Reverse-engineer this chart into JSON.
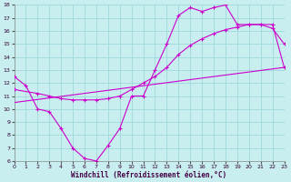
{
  "xlabel": "Windchill (Refroidissement éolien,°C)",
  "xlim": [
    0,
    23
  ],
  "ylim": [
    6,
    18
  ],
  "xticks": [
    0,
    1,
    2,
    3,
    4,
    5,
    6,
    7,
    8,
    9,
    10,
    11,
    12,
    13,
    14,
    15,
    16,
    17,
    18,
    19,
    20,
    21,
    22,
    23
  ],
  "yticks": [
    6,
    7,
    8,
    9,
    10,
    11,
    12,
    13,
    14,
    15,
    16,
    17,
    18
  ],
  "bg_color": "#c8eef0",
  "line_color": "#cc00cc",
  "grid_color": "#9fd8dc",
  "line1_x": [
    0,
    1,
    2,
    3,
    4,
    5,
    6,
    7,
    8,
    9,
    10,
    11,
    12,
    13,
    14,
    15,
    16,
    17,
    18,
    19,
    20,
    21,
    22,
    23
  ],
  "line1_y": [
    12.5,
    11.8,
    10.0,
    9.8,
    8.5,
    7.0,
    6.2,
    6.0,
    7.2,
    8.5,
    11.0,
    11.0,
    13.0,
    15.0,
    17.2,
    17.8,
    17.5,
    17.8,
    18.0,
    16.5,
    16.5,
    16.5,
    16.2,
    15.0
  ],
  "line2_x": [
    0,
    2,
    3,
    4,
    5,
    6,
    7,
    8,
    9,
    10,
    11,
    12,
    13,
    14,
    15,
    16,
    17,
    18,
    19,
    20,
    21,
    22,
    23
  ],
  "line2_y": [
    11.5,
    11.2,
    11.0,
    10.8,
    10.7,
    10.7,
    10.7,
    10.8,
    11.0,
    11.5,
    12.0,
    12.5,
    13.2,
    14.2,
    14.9,
    15.4,
    15.8,
    16.1,
    16.3,
    16.5,
    16.5,
    16.5,
    13.2
  ],
  "line3_x": [
    0,
    23
  ],
  "line3_y": [
    10.5,
    13.2
  ]
}
